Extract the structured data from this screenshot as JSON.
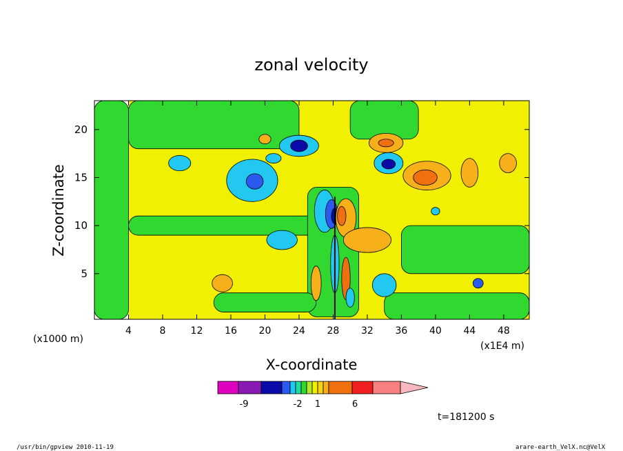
{
  "chart_data": {
    "type": "heatmap",
    "title": "zonal velocity",
    "xlabel": "X-coordinate",
    "ylabel": "Z-coordinate",
    "x_unit": "(x1E4 m)",
    "y_unit": "(x1000 m)",
    "xlim": [
      0,
      51
    ],
    "ylim": [
      0.25,
      23
    ],
    "x_ticks": [
      4,
      8,
      12,
      16,
      20,
      24,
      28,
      32,
      36,
      40,
      44,
      48
    ],
    "x_tick_labels": [
      "4",
      "8",
      "12",
      "16",
      "20",
      "24",
      "28",
      "32",
      "36",
      "40",
      "44",
      "48"
    ],
    "y_ticks": [
      5,
      10,
      15,
      20
    ],
    "y_tick_labels": [
      "5",
      "10",
      "15",
      "20"
    ],
    "grid": false,
    "colorbar": {
      "colors": [
        "#e000c0",
        "#8a1ab4",
        "#0a0aa8",
        "#2a5af0",
        "#22c8f0",
        "#20dca0",
        "#30d830",
        "#b0e830",
        "#f0f000",
        "#f8d018",
        "#f8b01a",
        "#f07010",
        "#f02020",
        "#f88080",
        "#f8b8c0"
      ],
      "tick_labels": [
        "-9",
        "-2",
        "1",
        "6"
      ]
    },
    "time_label": "t=181200 s",
    "footer_left": "/usr/bin/gpview   2010-11-19",
    "footer_right": "arare-earth_VelX.nc@VelX",
    "features": [
      {
        "kind": "background",
        "x": [
          4,
          51
        ],
        "z": [
          0.25,
          23
        ],
        "color": "#f0f000"
      },
      {
        "kind": "band",
        "x": [
          0,
          4
        ],
        "z": [
          0.25,
          23
        ],
        "color": "#30d830"
      },
      {
        "kind": "band",
        "x": [
          4,
          28
        ],
        "z": [
          9,
          11
        ],
        "color": "#30d830"
      },
      {
        "kind": "band",
        "x": [
          4,
          24
        ],
        "z": [
          18,
          23
        ],
        "color": "#30d830"
      },
      {
        "kind": "band",
        "x": [
          25,
          31
        ],
        "z": [
          0.5,
          14
        ],
        "color": "#30d830"
      },
      {
        "kind": "band",
        "x": [
          36,
          51
        ],
        "z": [
          5,
          10
        ],
        "color": "#30d830"
      },
      {
        "kind": "band",
        "x": [
          34,
          51
        ],
        "z": [
          0.25,
          3
        ],
        "color": "#30d830"
      },
      {
        "kind": "band",
        "x": [
          14,
          26
        ],
        "z": [
          1,
          3
        ],
        "color": "#30d830"
      },
      {
        "kind": "band",
        "x": [
          30,
          38
        ],
        "z": [
          19,
          23
        ],
        "color": "#30d830"
      },
      {
        "kind": "blob",
        "x": 18.5,
        "z": 14.7,
        "rx": 3.0,
        "rz": 2.2,
        "color": "#22c8f0"
      },
      {
        "kind": "blob",
        "x": 18.8,
        "z": 14.6,
        "rx": 1.0,
        "rz": 0.8,
        "color": "#2a5af0"
      },
      {
        "kind": "blob",
        "x": 24.0,
        "z": 18.3,
        "rx": 2.3,
        "rz": 1.1,
        "color": "#22c8f0"
      },
      {
        "kind": "blob",
        "x": 24.0,
        "z": 18.3,
        "rx": 1.0,
        "rz": 0.6,
        "color": "#0a0aa8"
      },
      {
        "kind": "blob",
        "x": 34.5,
        "z": 16.5,
        "rx": 1.7,
        "rz": 1.1,
        "color": "#22c8f0"
      },
      {
        "kind": "blob",
        "x": 34.5,
        "z": 16.4,
        "rx": 0.8,
        "rz": 0.5,
        "color": "#0a0aa8"
      },
      {
        "kind": "blob",
        "x": 34.2,
        "z": 18.6,
        "rx": 2.0,
        "rz": 1.0,
        "color": "#f8b01a"
      },
      {
        "kind": "blob",
        "x": 34.2,
        "z": 18.6,
        "rx": 0.9,
        "rz": 0.4,
        "color": "#f07010"
      },
      {
        "kind": "blob",
        "x": 39.0,
        "z": 15.2,
        "rx": 2.8,
        "rz": 1.5,
        "color": "#f8b01a"
      },
      {
        "kind": "blob",
        "x": 38.8,
        "z": 15.0,
        "rx": 1.4,
        "rz": 0.8,
        "color": "#f07010"
      },
      {
        "kind": "blob",
        "x": 27.0,
        "z": 11.5,
        "rx": 1.2,
        "rz": 2.2,
        "color": "#22c8f0"
      },
      {
        "kind": "blob",
        "x": 27.8,
        "z": 11.2,
        "rx": 0.7,
        "rz": 1.5,
        "color": "#2a5af0"
      },
      {
        "kind": "blob",
        "x": 28.2,
        "z": 11.0,
        "rx": 0.4,
        "rz": 0.8,
        "color": "#0a0aa8"
      },
      {
        "kind": "blob",
        "x": 29.5,
        "z": 10.8,
        "rx": 1.2,
        "rz": 2.0,
        "color": "#f8b01a"
      },
      {
        "kind": "blob",
        "x": 29.0,
        "z": 11.0,
        "rx": 0.5,
        "rz": 1.0,
        "color": "#f07010"
      },
      {
        "kind": "blob",
        "x": 34.0,
        "z": 3.8,
        "rx": 1.4,
        "rz": 1.2,
        "color": "#22c8f0"
      },
      {
        "kind": "blob",
        "x": 15.0,
        "z": 4.0,
        "rx": 1.2,
        "rz": 0.9,
        "color": "#f8b01a"
      },
      {
        "kind": "blob",
        "x": 22.0,
        "z": 8.5,
        "rx": 1.8,
        "rz": 1.0,
        "color": "#22c8f0"
      },
      {
        "kind": "blob",
        "x": 32.0,
        "z": 8.5,
        "rx": 2.8,
        "rz": 1.3,
        "color": "#f8b01a"
      },
      {
        "kind": "blob",
        "x": 10.0,
        "z": 16.5,
        "rx": 1.3,
        "rz": 0.8,
        "color": "#22c8f0"
      },
      {
        "kind": "blob",
        "x": 21.0,
        "z": 17.0,
        "rx": 0.9,
        "rz": 0.5,
        "color": "#22c8f0"
      },
      {
        "kind": "blob",
        "x": 44.0,
        "z": 15.5,
        "rx": 1.0,
        "rz": 1.5,
        "color": "#f8b01a"
      },
      {
        "kind": "blob",
        "x": 48.5,
        "z": 16.5,
        "rx": 1.0,
        "rz": 1.0,
        "color": "#f8b01a"
      },
      {
        "kind": "blob",
        "x": 20.0,
        "z": 19.0,
        "rx": 0.7,
        "rz": 0.5,
        "color": "#f8b01a"
      },
      {
        "kind": "blob",
        "x": 45.0,
        "z": 4.0,
        "rx": 0.6,
        "rz": 0.5,
        "color": "#2a5af0"
      },
      {
        "kind": "blob",
        "x": 26.0,
        "z": 4.0,
        "rx": 0.6,
        "rz": 1.8,
        "color": "#f8b01a"
      },
      {
        "kind": "blob",
        "x": 29.5,
        "z": 4.5,
        "rx": 0.5,
        "rz": 2.2,
        "color": "#f07010"
      },
      {
        "kind": "blob",
        "x": 28.2,
        "z": 6.0,
        "rx": 0.5,
        "rz": 3.0,
        "color": "#22c8f0"
      },
      {
        "kind": "blob",
        "x": 30.0,
        "z": 2.5,
        "rx": 0.5,
        "rz": 1.0,
        "color": "#22c8f0"
      },
      {
        "kind": "blob",
        "x": 40.0,
        "z": 11.5,
        "rx": 0.5,
        "rz": 0.4,
        "color": "#22c8f0"
      }
    ]
  }
}
